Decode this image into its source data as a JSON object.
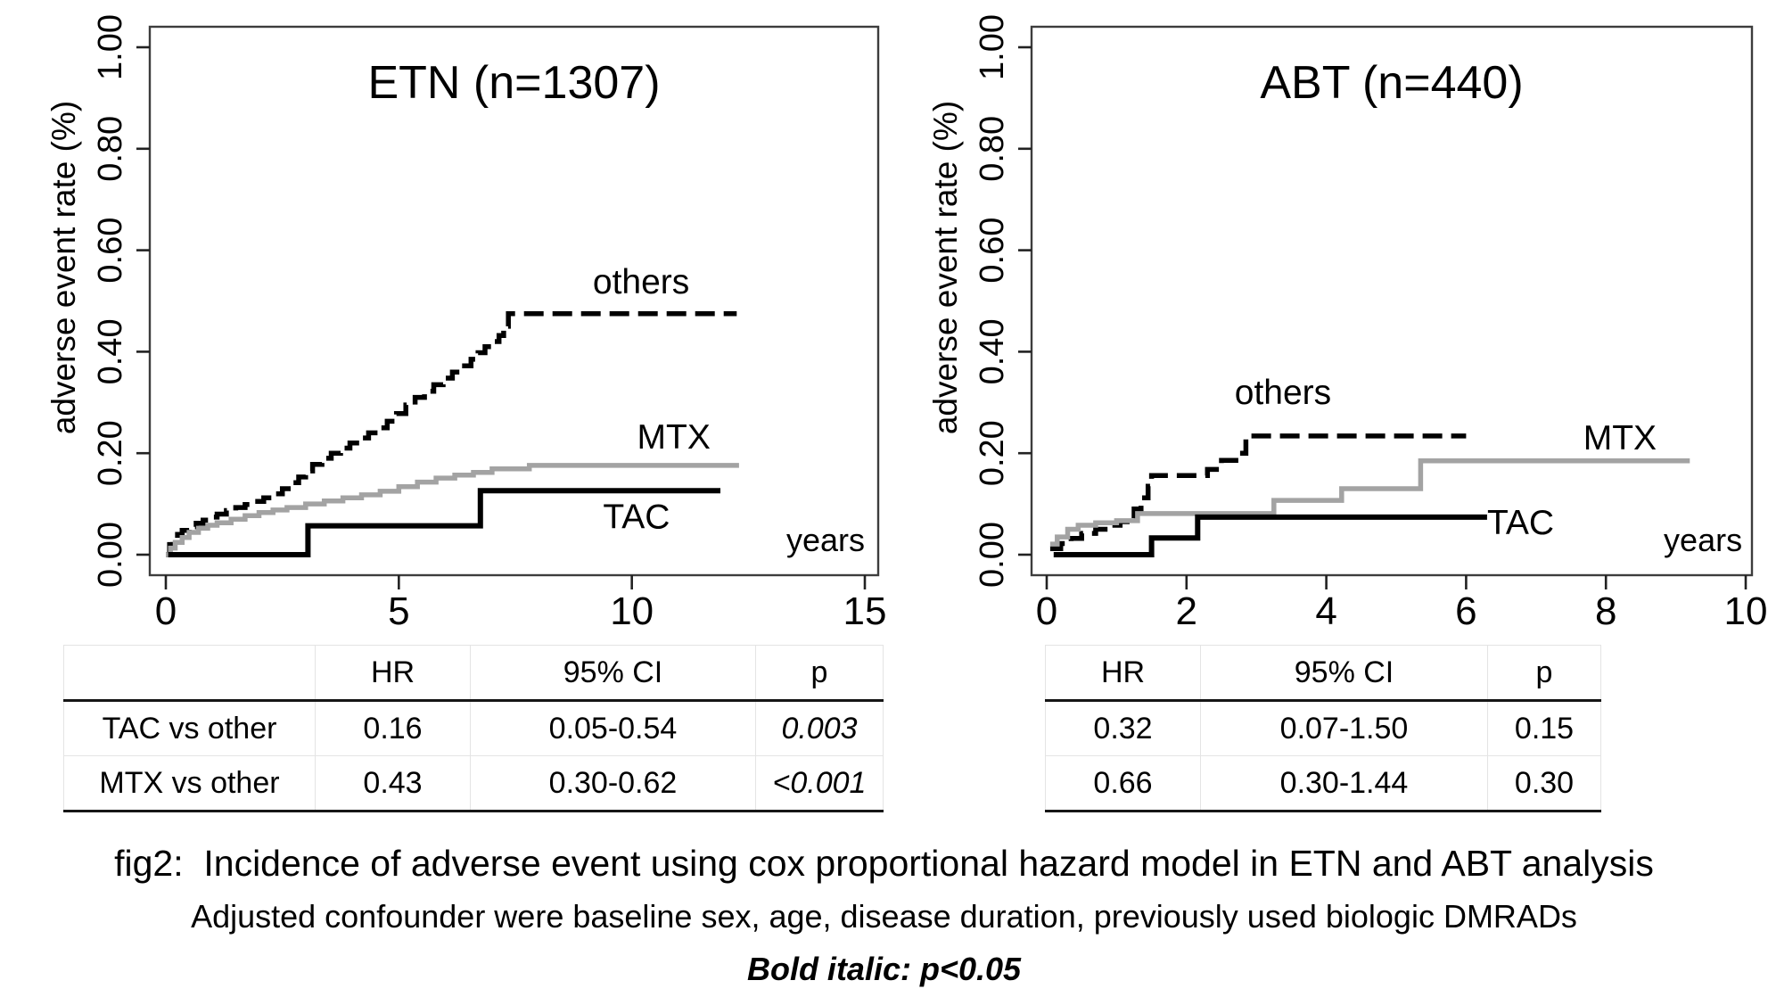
{
  "accent_colors": {
    "curve_black": "#000000",
    "curve_gray": "#a3a3a3",
    "box_stroke": "#3d3d3d",
    "rule_dark": "#161616",
    "grid_light": "#e4e4e4"
  },
  "chart_data": [
    {
      "id": "etn",
      "type": "line",
      "title": "ETN (n=1307)",
      "xlabel": "years",
      "ylabel": "adverse event rate (%)",
      "xlim": [
        0,
        15
      ],
      "ylim": [
        0,
        1
      ],
      "grid": false,
      "legend": "in-plot text labels",
      "x_ticks": [
        0,
        5,
        10,
        15
      ],
      "y_ticks": [
        {
          "v": 0.0,
          "label": "0.00"
        },
        {
          "v": 0.2,
          "label": "0.20"
        },
        {
          "v": 0.4,
          "label": "0.40"
        },
        {
          "v": 0.6,
          "label": "0.60"
        },
        {
          "v": 0.8,
          "label": "0.80"
        },
        {
          "v": 1.0,
          "label": "1.00"
        }
      ],
      "x_unit_annotation": {
        "text": "years",
        "x": 15.0,
        "y": 0.018,
        "anchor": "end"
      },
      "series": [
        {
          "name": "others",
          "style": "dashed",
          "color": "#000000",
          "width": 5.5,
          "label": {
            "text": "others",
            "x": 10.2,
            "y": 0.538,
            "anchor": "middle"
          },
          "points": [
            [
              0,
              0
            ],
            [
              0.08,
              0.02
            ],
            [
              0.15,
              0.03
            ],
            [
              0.25,
              0.04
            ],
            [
              0.35,
              0.048
            ],
            [
              0.5,
              0.055
            ],
            [
              0.65,
              0.062
            ],
            [
              0.8,
              0.068
            ],
            [
              0.95,
              0.074
            ],
            [
              1.1,
              0.08
            ],
            [
              1.3,
              0.087
            ],
            [
              1.5,
              0.093
            ],
            [
              1.7,
              0.099
            ],
            [
              1.9,
              0.105
            ],
            [
              2.1,
              0.112
            ],
            [
              2.3,
              0.12
            ],
            [
              2.5,
              0.13
            ],
            [
              2.7,
              0.142
            ],
            [
              2.85,
              0.153
            ],
            [
              3.0,
              0.165
            ],
            [
              3.15,
              0.178
            ],
            [
              3.35,
              0.19
            ],
            [
              3.55,
              0.2
            ],
            [
              3.75,
              0.21
            ],
            [
              3.95,
              0.22
            ],
            [
              4.15,
              0.23
            ],
            [
              4.35,
              0.24
            ],
            [
              4.55,
              0.25
            ],
            [
              4.75,
              0.263
            ],
            [
              4.95,
              0.278
            ],
            [
              5.15,
              0.295
            ],
            [
              5.35,
              0.31
            ],
            [
              5.55,
              0.322
            ],
            [
              5.75,
              0.335
            ],
            [
              5.95,
              0.348
            ],
            [
              6.15,
              0.36
            ],
            [
              6.35,
              0.372
            ],
            [
              6.55,
              0.385
            ],
            [
              6.7,
              0.398
            ],
            [
              6.85,
              0.41
            ],
            [
              7.0,
              0.42
            ],
            [
              7.15,
              0.432
            ],
            [
              7.25,
              0.45
            ],
            [
              7.35,
              0.475
            ],
            [
              12.25,
              0.475
            ]
          ]
        },
        {
          "name": "MTX",
          "style": "solid",
          "color": "#a3a3a3",
          "width": 5.5,
          "label": {
            "text": "MTX",
            "x": 10.9,
            "y": 0.232,
            "anchor": "middle"
          },
          "points": [
            [
              0,
              0
            ],
            [
              0.1,
              0.013
            ],
            [
              0.2,
              0.024
            ],
            [
              0.35,
              0.034
            ],
            [
              0.5,
              0.044
            ],
            [
              0.7,
              0.052
            ],
            [
              0.9,
              0.058
            ],
            [
              1.1,
              0.063
            ],
            [
              1.4,
              0.07
            ],
            [
              1.7,
              0.077
            ],
            [
              2.0,
              0.083
            ],
            [
              2.3,
              0.088
            ],
            [
              2.6,
              0.093
            ],
            [
              3.0,
              0.1
            ],
            [
              3.4,
              0.106
            ],
            [
              3.8,
              0.112
            ],
            [
              4.2,
              0.118
            ],
            [
              4.6,
              0.125
            ],
            [
              5.0,
              0.134
            ],
            [
              5.4,
              0.143
            ],
            [
              5.8,
              0.151
            ],
            [
              6.2,
              0.157
            ],
            [
              6.6,
              0.162
            ],
            [
              7.0,
              0.169
            ],
            [
              7.8,
              0.176
            ],
            [
              12.3,
              0.176
            ]
          ]
        },
        {
          "name": "TAC",
          "style": "solid",
          "color": "#000000",
          "width": 6,
          "label": {
            "text": "TAC",
            "x": 10.1,
            "y": 0.075,
            "anchor": "middle"
          },
          "points": [
            [
              0.05,
              0
            ],
            [
              3.05,
              0.057
            ],
            [
              6.75,
              0.126
            ],
            [
              11.9,
              0.126
            ]
          ]
        }
      ]
    },
    {
      "id": "abt",
      "type": "line",
      "title": "ABT (n=440)",
      "xlabel": "years",
      "ylabel": "adverse event rate (%)",
      "xlim": [
        0,
        10
      ],
      "ylim": [
        0,
        1
      ],
      "grid": false,
      "legend": "in-plot text labels",
      "x_ticks": [
        0,
        2,
        4,
        6,
        8,
        10
      ],
      "y_ticks": [
        {
          "v": 0.0,
          "label": "0.00"
        },
        {
          "v": 0.2,
          "label": "0.20"
        },
        {
          "v": 0.4,
          "label": "0.40"
        },
        {
          "v": 0.6,
          "label": "0.60"
        },
        {
          "v": 0.8,
          "label": "0.80"
        },
        {
          "v": 1.0,
          "label": "1.00"
        }
      ],
      "x_unit_annotation": {
        "text": "years",
        "x": 9.95,
        "y": 0.018,
        "anchor": "end"
      },
      "series": [
        {
          "name": "others",
          "style": "dashed",
          "color": "#000000",
          "width": 5.5,
          "label": {
            "text": "others",
            "x": 3.38,
            "y": 0.32,
            "anchor": "middle"
          },
          "points": [
            [
              0.05,
              0.012
            ],
            [
              0.2,
              0.022
            ],
            [
              0.35,
              0.032
            ],
            [
              0.5,
              0.042
            ],
            [
              0.7,
              0.05
            ],
            [
              0.9,
              0.058
            ],
            [
              1.05,
              0.065
            ],
            [
              1.15,
              0.072
            ],
            [
              1.25,
              0.09
            ],
            [
              1.35,
              0.112
            ],
            [
              1.45,
              0.135
            ],
            [
              1.5,
              0.156
            ],
            [
              2.3,
              0.168
            ],
            [
              2.5,
              0.186
            ],
            [
              2.75,
              0.2
            ],
            [
              2.85,
              0.234
            ],
            [
              6.0,
              0.234
            ]
          ]
        },
        {
          "name": "MTX",
          "style": "solid",
          "color": "#a3a3a3",
          "width": 5.5,
          "label": {
            "text": "MTX",
            "x": 8.2,
            "y": 0.23,
            "anchor": "middle"
          },
          "points": [
            [
              0.05,
              0.021
            ],
            [
              0.15,
              0.035
            ],
            [
              0.3,
              0.05
            ],
            [
              0.45,
              0.058
            ],
            [
              0.7,
              0.063
            ],
            [
              1.0,
              0.067
            ],
            [
              1.3,
              0.081
            ],
            [
              3.25,
              0.107
            ],
            [
              4.22,
              0.13
            ],
            [
              5.35,
              0.185
            ],
            [
              9.2,
              0.185
            ]
          ]
        },
        {
          "name": "TAC",
          "style": "solid",
          "color": "#000000",
          "width": 6,
          "label": {
            "text": "TAC",
            "x": 6.78,
            "y": 0.063,
            "anchor": "middle"
          },
          "points": [
            [
              0.1,
              0
            ],
            [
              1.5,
              0.033
            ],
            [
              2.16,
              0.074
            ],
            [
              6.3,
              0.074
            ]
          ]
        }
      ]
    }
  ],
  "tables": [
    {
      "id": "etn-table",
      "headers": [
        "",
        "HR",
        "95% CI",
        "p"
      ],
      "rows": [
        {
          "label": "TAC vs other",
          "hr": "0.16",
          "ci": "0.05-0.54",
          "p": "0.003",
          "p_bold": true
        },
        {
          "label": "MTX vs other",
          "hr": "0.43",
          "ci": "0.30-0.62",
          "p": "<0.001",
          "p_bold": true
        }
      ]
    },
    {
      "id": "abt-table",
      "headers": [
        "HR",
        "95% CI",
        "p"
      ],
      "rows": [
        {
          "hr": "0.32",
          "ci": "0.07-1.50",
          "p": "0.15",
          "p_bold": false
        },
        {
          "hr": "0.66",
          "ci": "0.30-1.44",
          "p": "0.30",
          "p_bold": false
        }
      ]
    }
  ],
  "caption": {
    "line1": "fig2:  Incidence of adverse event using cox proportional hazard model in ETN and ABT analysis",
    "line2": "Adjusted confounder were baseline sex, age, disease duration, previously used biologic DMRADs",
    "line3": "Bold italic: p<0.05"
  }
}
